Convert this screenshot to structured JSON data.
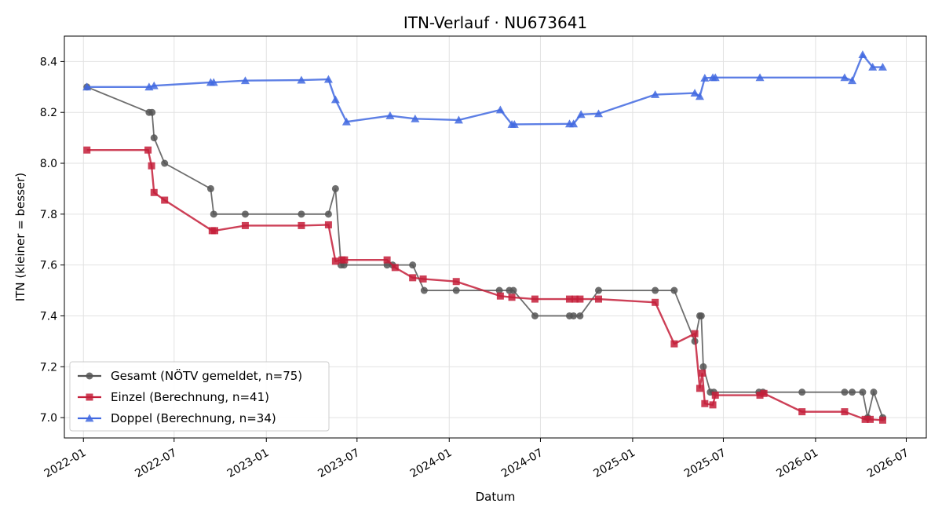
{
  "chart_data": {
    "type": "line",
    "title": "ITN-Verlauf · NU673641",
    "xlabel": "Datum",
    "ylabel": "ITN  (kleiner = besser)",
    "xlim": [
      "2021-11-24",
      "2026-08-10"
    ],
    "ylim": [
      6.92,
      8.5
    ],
    "x_ticks": [
      "2022-01",
      "2022-07",
      "2023-01",
      "2023-07",
      "2024-01",
      "2024-07",
      "2025-01",
      "2025-07",
      "2026-01",
      "2026-07"
    ],
    "y_ticks": [
      7.0,
      7.2,
      7.4,
      7.6,
      7.8,
      8.0,
      8.2,
      8.4
    ],
    "grid": true,
    "legend_position": "lower-left",
    "series": [
      {
        "name": "Gesamt (NÖTV gemeldet, n=75)",
        "color": "#555555",
        "marker": "circle",
        "points": [
          [
            "2022-01-08",
            8.3
          ],
          [
            "2022-05-12",
            8.2
          ],
          [
            "2022-05-18",
            8.2
          ],
          [
            "2022-05-22",
            8.1
          ],
          [
            "2022-06-12",
            8.0
          ],
          [
            "2022-09-12",
            7.9
          ],
          [
            "2022-09-18",
            7.8
          ],
          [
            "2022-11-20",
            7.8
          ],
          [
            "2023-03-12",
            7.8
          ],
          [
            "2023-05-05",
            7.8
          ],
          [
            "2023-05-19",
            7.9
          ],
          [
            "2023-05-30",
            7.6
          ],
          [
            "2023-06-05",
            7.6
          ],
          [
            "2023-08-30",
            7.6
          ],
          [
            "2023-09-10",
            7.6
          ],
          [
            "2023-10-20",
            7.6
          ],
          [
            "2023-11-12",
            7.5
          ],
          [
            "2024-01-15",
            7.5
          ],
          [
            "2024-04-10",
            7.5
          ],
          [
            "2024-04-30",
            7.5
          ],
          [
            "2024-05-08",
            7.5
          ],
          [
            "2024-06-20",
            7.4
          ],
          [
            "2024-08-28",
            7.4
          ],
          [
            "2024-09-05",
            7.4
          ],
          [
            "2024-09-18",
            7.4
          ],
          [
            "2024-10-25",
            7.5
          ],
          [
            "2025-02-15",
            7.5
          ],
          [
            "2025-03-25",
            7.5
          ],
          [
            "2025-05-05",
            7.3
          ],
          [
            "2025-05-15",
            7.4
          ],
          [
            "2025-05-18",
            7.4
          ],
          [
            "2025-05-22",
            7.2
          ],
          [
            "2025-06-05",
            7.1
          ],
          [
            "2025-06-12",
            7.1
          ],
          [
            "2025-09-10",
            7.1
          ],
          [
            "2025-09-18",
            7.1
          ],
          [
            "2025-12-05",
            7.1
          ],
          [
            "2026-02-28",
            7.1
          ],
          [
            "2026-03-15",
            7.1
          ],
          [
            "2026-04-05",
            7.1
          ],
          [
            "2026-04-15",
            7.0
          ],
          [
            "2026-04-27",
            7.1
          ],
          [
            "2026-05-15",
            7.0
          ]
        ]
      },
      {
        "name": "Einzel (Berechnung, n=41)",
        "color": "#c41e3a",
        "marker": "square",
        "points": [
          [
            "2022-01-08",
            8.052
          ],
          [
            "2022-05-10",
            8.052
          ],
          [
            "2022-05-17",
            7.99
          ],
          [
            "2022-05-22",
            7.885
          ],
          [
            "2022-06-12",
            7.855
          ],
          [
            "2022-09-15",
            7.735
          ],
          [
            "2022-09-20",
            7.735
          ],
          [
            "2022-11-20",
            7.755
          ],
          [
            "2023-03-12",
            7.755
          ],
          [
            "2023-05-05",
            7.758
          ],
          [
            "2023-05-19",
            7.615
          ],
          [
            "2023-06-01",
            7.62
          ],
          [
            "2023-06-06",
            7.62
          ],
          [
            "2023-08-30",
            7.62
          ],
          [
            "2023-09-15",
            7.59
          ],
          [
            "2023-10-20",
            7.55
          ],
          [
            "2023-11-10",
            7.545
          ],
          [
            "2024-01-15",
            7.535
          ],
          [
            "2024-04-12",
            7.478
          ],
          [
            "2024-05-05",
            7.473
          ],
          [
            "2024-06-20",
            7.466
          ],
          [
            "2024-08-28",
            7.466
          ],
          [
            "2024-09-08",
            7.466
          ],
          [
            "2024-09-18",
            7.466
          ],
          [
            "2024-10-25",
            7.466
          ],
          [
            "2025-02-15",
            7.453
          ],
          [
            "2025-03-25",
            7.29
          ],
          [
            "2025-05-05",
            7.33
          ],
          [
            "2025-05-15",
            7.115
          ],
          [
            "2025-05-20",
            7.175
          ],
          [
            "2025-05-25",
            7.055
          ],
          [
            "2025-06-10",
            7.05
          ],
          [
            "2025-06-15",
            7.088
          ],
          [
            "2025-09-12",
            7.088
          ],
          [
            "2025-09-20",
            7.095
          ],
          [
            "2025-12-05",
            7.023
          ],
          [
            "2026-02-28",
            7.023
          ],
          [
            "2026-04-10",
            6.993
          ],
          [
            "2026-04-20",
            6.993
          ],
          [
            "2026-05-15",
            6.99
          ]
        ]
      },
      {
        "name": "Doppel (Berechnung, n=34)",
        "color": "#4169e1",
        "marker": "triangle",
        "points": [
          [
            "2022-01-08",
            8.3
          ],
          [
            "2022-05-12",
            8.3
          ],
          [
            "2022-05-22",
            8.305
          ],
          [
            "2022-09-12",
            8.318
          ],
          [
            "2022-09-18",
            8.318
          ],
          [
            "2022-11-20",
            8.325
          ],
          [
            "2023-03-12",
            8.327
          ],
          [
            "2023-05-05",
            8.33
          ],
          [
            "2023-05-19",
            8.25
          ],
          [
            "2023-06-10",
            8.163
          ],
          [
            "2023-09-05",
            8.187
          ],
          [
            "2023-10-25",
            8.175
          ],
          [
            "2024-01-20",
            8.17
          ],
          [
            "2024-04-12",
            8.21
          ],
          [
            "2024-05-05",
            8.153
          ],
          [
            "2024-05-10",
            8.153
          ],
          [
            "2024-08-28",
            8.155
          ],
          [
            "2024-09-05",
            8.155
          ],
          [
            "2024-09-20",
            8.192
          ],
          [
            "2024-10-25",
            8.195
          ],
          [
            "2025-02-15",
            8.27
          ],
          [
            "2025-05-05",
            8.276
          ],
          [
            "2025-05-15",
            8.263
          ],
          [
            "2025-05-25",
            8.335
          ],
          [
            "2025-06-10",
            8.337
          ],
          [
            "2025-06-15",
            8.337
          ],
          [
            "2025-09-12",
            8.337
          ],
          [
            "2026-02-28",
            8.337
          ],
          [
            "2026-03-15",
            8.325
          ],
          [
            "2026-04-05",
            8.427
          ],
          [
            "2026-04-25",
            8.378
          ],
          [
            "2026-05-15",
            8.378
          ]
        ]
      }
    ]
  }
}
